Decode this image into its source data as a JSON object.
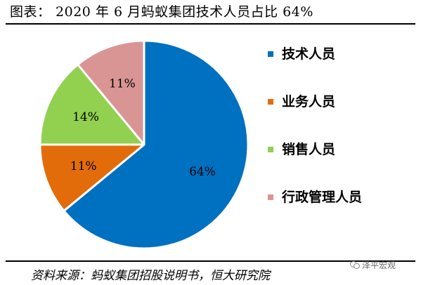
{
  "chart_data": {
    "type": "pie",
    "title": "图表： 2020 年 6 月蚂蚁集团技术人员占比 64%",
    "start_angle_deg": 90,
    "direction": "clockwise",
    "slices": [
      {
        "name": "技术人员",
        "value": 64,
        "label": "64%",
        "color": "#0070C0"
      },
      {
        "name": "业务人员",
        "value": 11,
        "label": "11%",
        "color": "#E36C0A"
      },
      {
        "name": "销售人员",
        "value": 14,
        "label": "14%",
        "color": "#92D050"
      },
      {
        "name": "行政管理人员",
        "value": 11,
        "label": "11%",
        "color": "#D99594"
      }
    ],
    "legend": {
      "position": "right"
    }
  },
  "source": "资料来源：蚂蚁集团招股说明书，恒大研究院",
  "watermark": {
    "text": "泽平宏观",
    "icon": "wechat-icon"
  }
}
